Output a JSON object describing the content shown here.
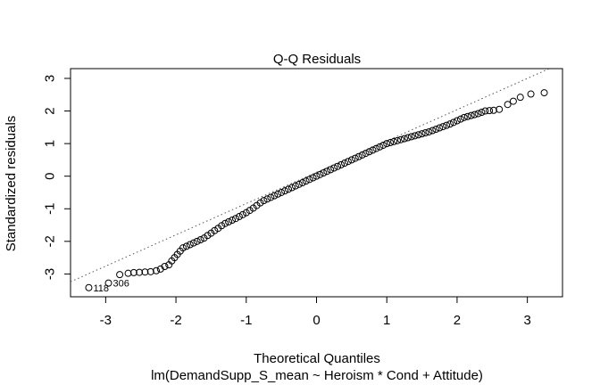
{
  "chart_data": {
    "type": "scatter",
    "title": "Q-Q Residuals",
    "xlabel": "Theoretical Quantiles",
    "subtitle": "lm(DemandSupp_S_mean ~ Heroism * Cond + Attitude)",
    "ylabel": "Standardized residuals",
    "xlim": [
      -3.5,
      3.5
    ],
    "ylim": [
      -3.7,
      3.3
    ],
    "x_ticks": [
      -3,
      -2,
      -1,
      0,
      1,
      2,
      3
    ],
    "x_tick_labels": [
      "-3",
      "-2",
      "-1",
      "0",
      "1",
      "2",
      "3"
    ],
    "y_ticks": [
      -3,
      -2,
      -1,
      0,
      1,
      2,
      3
    ],
    "y_tick_labels": [
      "-3",
      "-2",
      "-1",
      "0",
      "1",
      "2",
      "3"
    ],
    "grid": false,
    "reference_line": {
      "style": "dotted",
      "slope": 0.96,
      "intercept": 0.12
    },
    "point_labels": [
      {
        "text": "118",
        "x": -3.24,
        "y": -3.42
      },
      {
        "text": "306",
        "x": -2.96,
        "y": -3.28
      }
    ],
    "series": [
      {
        "points": [
          [
            -3.24,
            -3.42
          ],
          [
            -2.96,
            -3.28
          ],
          [
            -2.8,
            -3.02
          ],
          [
            -2.68,
            -2.98
          ],
          [
            -2.6,
            -2.96
          ],
          [
            -2.52,
            -2.95
          ],
          [
            -2.44,
            -2.94
          ],
          [
            -2.36,
            -2.93
          ],
          [
            -2.28,
            -2.9
          ],
          [
            -2.22,
            -2.85
          ],
          [
            -2.16,
            -2.77
          ],
          [
            -2.1,
            -2.72
          ],
          [
            -2.06,
            -2.6
          ],
          [
            -2.02,
            -2.5
          ],
          [
            -1.98,
            -2.4
          ],
          [
            -1.94,
            -2.3
          ],
          [
            -1.9,
            -2.2
          ],
          [
            -1.85,
            -2.15
          ],
          [
            -1.8,
            -2.1
          ],
          [
            -1.75,
            -2.05
          ],
          [
            -1.7,
            -2.0
          ],
          [
            -1.65,
            -1.95
          ],
          [
            -1.6,
            -1.9
          ],
          [
            -1.55,
            -1.82
          ],
          [
            -1.5,
            -1.75
          ],
          [
            -1.45,
            -1.67
          ],
          [
            -1.4,
            -1.6
          ],
          [
            -1.35,
            -1.52
          ],
          [
            -1.3,
            -1.45
          ],
          [
            -1.25,
            -1.4
          ],
          [
            -1.2,
            -1.35
          ],
          [
            -1.15,
            -1.3
          ],
          [
            -1.1,
            -1.24
          ],
          [
            -1.05,
            -1.18
          ],
          [
            -1.0,
            -1.12
          ],
          [
            -0.95,
            -1.05
          ],
          [
            -0.9,
            -0.98
          ],
          [
            -0.85,
            -0.9
          ],
          [
            -0.8,
            -0.82
          ],
          [
            -0.75,
            -0.75
          ],
          [
            -0.7,
            -0.7
          ],
          [
            -0.65,
            -0.65
          ],
          [
            -0.6,
            -0.6
          ],
          [
            -0.55,
            -0.55
          ],
          [
            -0.5,
            -0.5
          ],
          [
            -0.45,
            -0.45
          ],
          [
            -0.4,
            -0.4
          ],
          [
            -0.35,
            -0.35
          ],
          [
            -0.3,
            -0.3
          ],
          [
            -0.25,
            -0.25
          ],
          [
            -0.2,
            -0.2
          ],
          [
            -0.15,
            -0.15
          ],
          [
            -0.1,
            -0.1
          ],
          [
            -0.05,
            -0.05
          ],
          [
            0.0,
            0.0
          ],
          [
            0.05,
            0.05
          ],
          [
            0.1,
            0.1
          ],
          [
            0.15,
            0.15
          ],
          [
            0.2,
            0.2
          ],
          [
            0.25,
            0.25
          ],
          [
            0.3,
            0.3
          ],
          [
            0.35,
            0.35
          ],
          [
            0.4,
            0.4
          ],
          [
            0.45,
            0.45
          ],
          [
            0.5,
            0.5
          ],
          [
            0.55,
            0.55
          ],
          [
            0.6,
            0.6
          ],
          [
            0.65,
            0.65
          ],
          [
            0.7,
            0.7
          ],
          [
            0.75,
            0.75
          ],
          [
            0.8,
            0.8
          ],
          [
            0.85,
            0.85
          ],
          [
            0.9,
            0.9
          ],
          [
            0.95,
            0.95
          ],
          [
            1.0,
            1.0
          ],
          [
            1.05,
            1.03
          ],
          [
            1.1,
            1.06
          ],
          [
            1.15,
            1.09
          ],
          [
            1.2,
            1.12
          ],
          [
            1.25,
            1.15
          ],
          [
            1.3,
            1.18
          ],
          [
            1.35,
            1.21
          ],
          [
            1.4,
            1.24
          ],
          [
            1.45,
            1.27
          ],
          [
            1.5,
            1.3
          ],
          [
            1.55,
            1.33
          ],
          [
            1.6,
            1.36
          ],
          [
            1.65,
            1.4
          ],
          [
            1.7,
            1.44
          ],
          [
            1.75,
            1.48
          ],
          [
            1.8,
            1.52
          ],
          [
            1.85,
            1.56
          ],
          [
            1.9,
            1.6
          ],
          [
            1.95,
            1.65
          ],
          [
            2.0,
            1.7
          ],
          [
            2.05,
            1.75
          ],
          [
            2.1,
            1.8
          ],
          [
            2.15,
            1.83
          ],
          [
            2.2,
            1.86
          ],
          [
            2.25,
            1.89
          ],
          [
            2.3,
            1.92
          ],
          [
            2.35,
            1.96
          ],
          [
            2.4,
            2.0
          ],
          [
            2.46,
            2.01
          ],
          [
            2.52,
            2.02
          ],
          [
            2.6,
            2.05
          ],
          [
            2.72,
            2.2
          ],
          [
            2.8,
            2.3
          ],
          [
            2.9,
            2.42
          ],
          [
            3.05,
            2.52
          ],
          [
            3.24,
            2.56
          ]
        ]
      }
    ]
  }
}
